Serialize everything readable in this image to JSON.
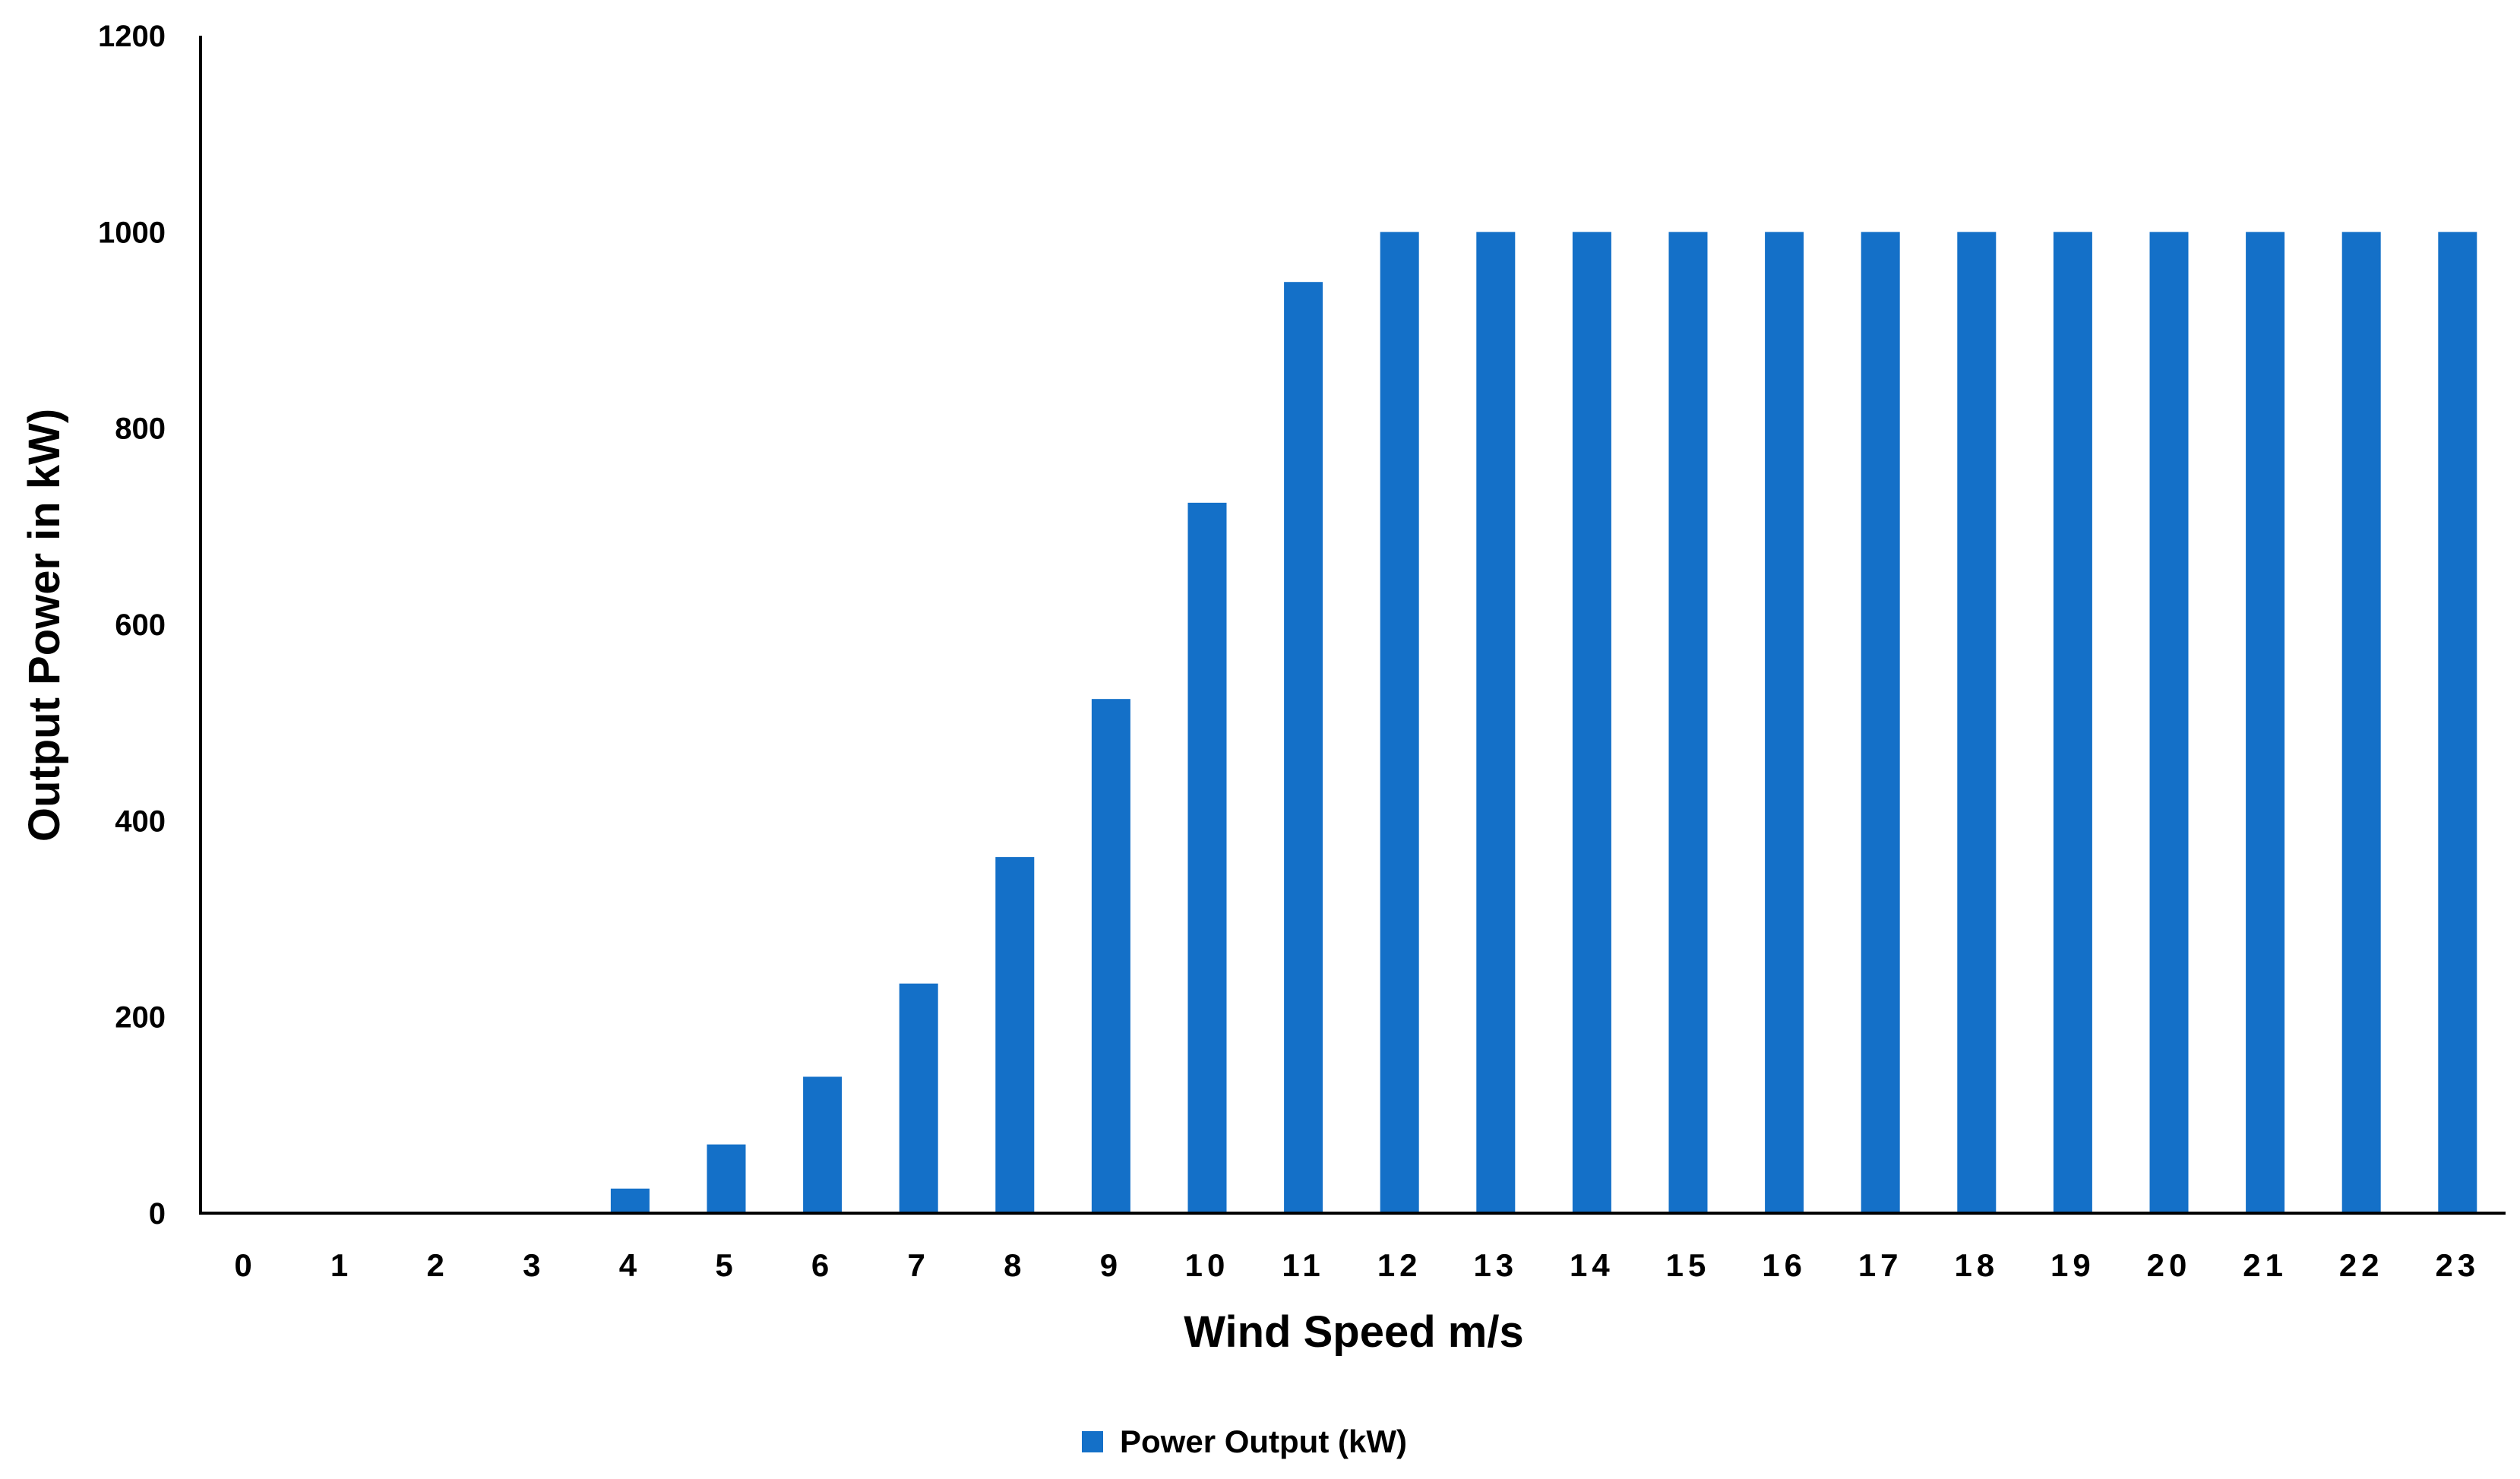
{
  "chart_data": {
    "type": "bar",
    "title": "",
    "xlabel": "Wind Speed m/s",
    "ylabel": "Output Power in kW)",
    "categories": [
      "0",
      "1",
      "2",
      "3",
      "4",
      "5",
      "6",
      "7",
      "8",
      "9",
      "10",
      "11",
      "12",
      "13",
      "14",
      "15",
      "16",
      "17",
      "18",
      "19",
      "20",
      "21",
      "22",
      "23"
    ],
    "series": [
      {
        "name": "Power Output (kW)",
        "color": "#1470C8",
        "values": [
          0,
          0,
          0,
          0,
          25,
          70,
          139,
          234,
          363,
          524,
          724,
          949,
          1000,
          1000,
          1000,
          1000,
          1000,
          1000,
          1000,
          1000,
          1000,
          1000,
          1000,
          1000
        ]
      }
    ],
    "ylim": [
      0,
      1200
    ],
    "yticks": [
      "0",
      "200",
      "400",
      "600",
      "800",
      "1000",
      "1200"
    ],
    "grid": false,
    "legend": "bottom"
  }
}
